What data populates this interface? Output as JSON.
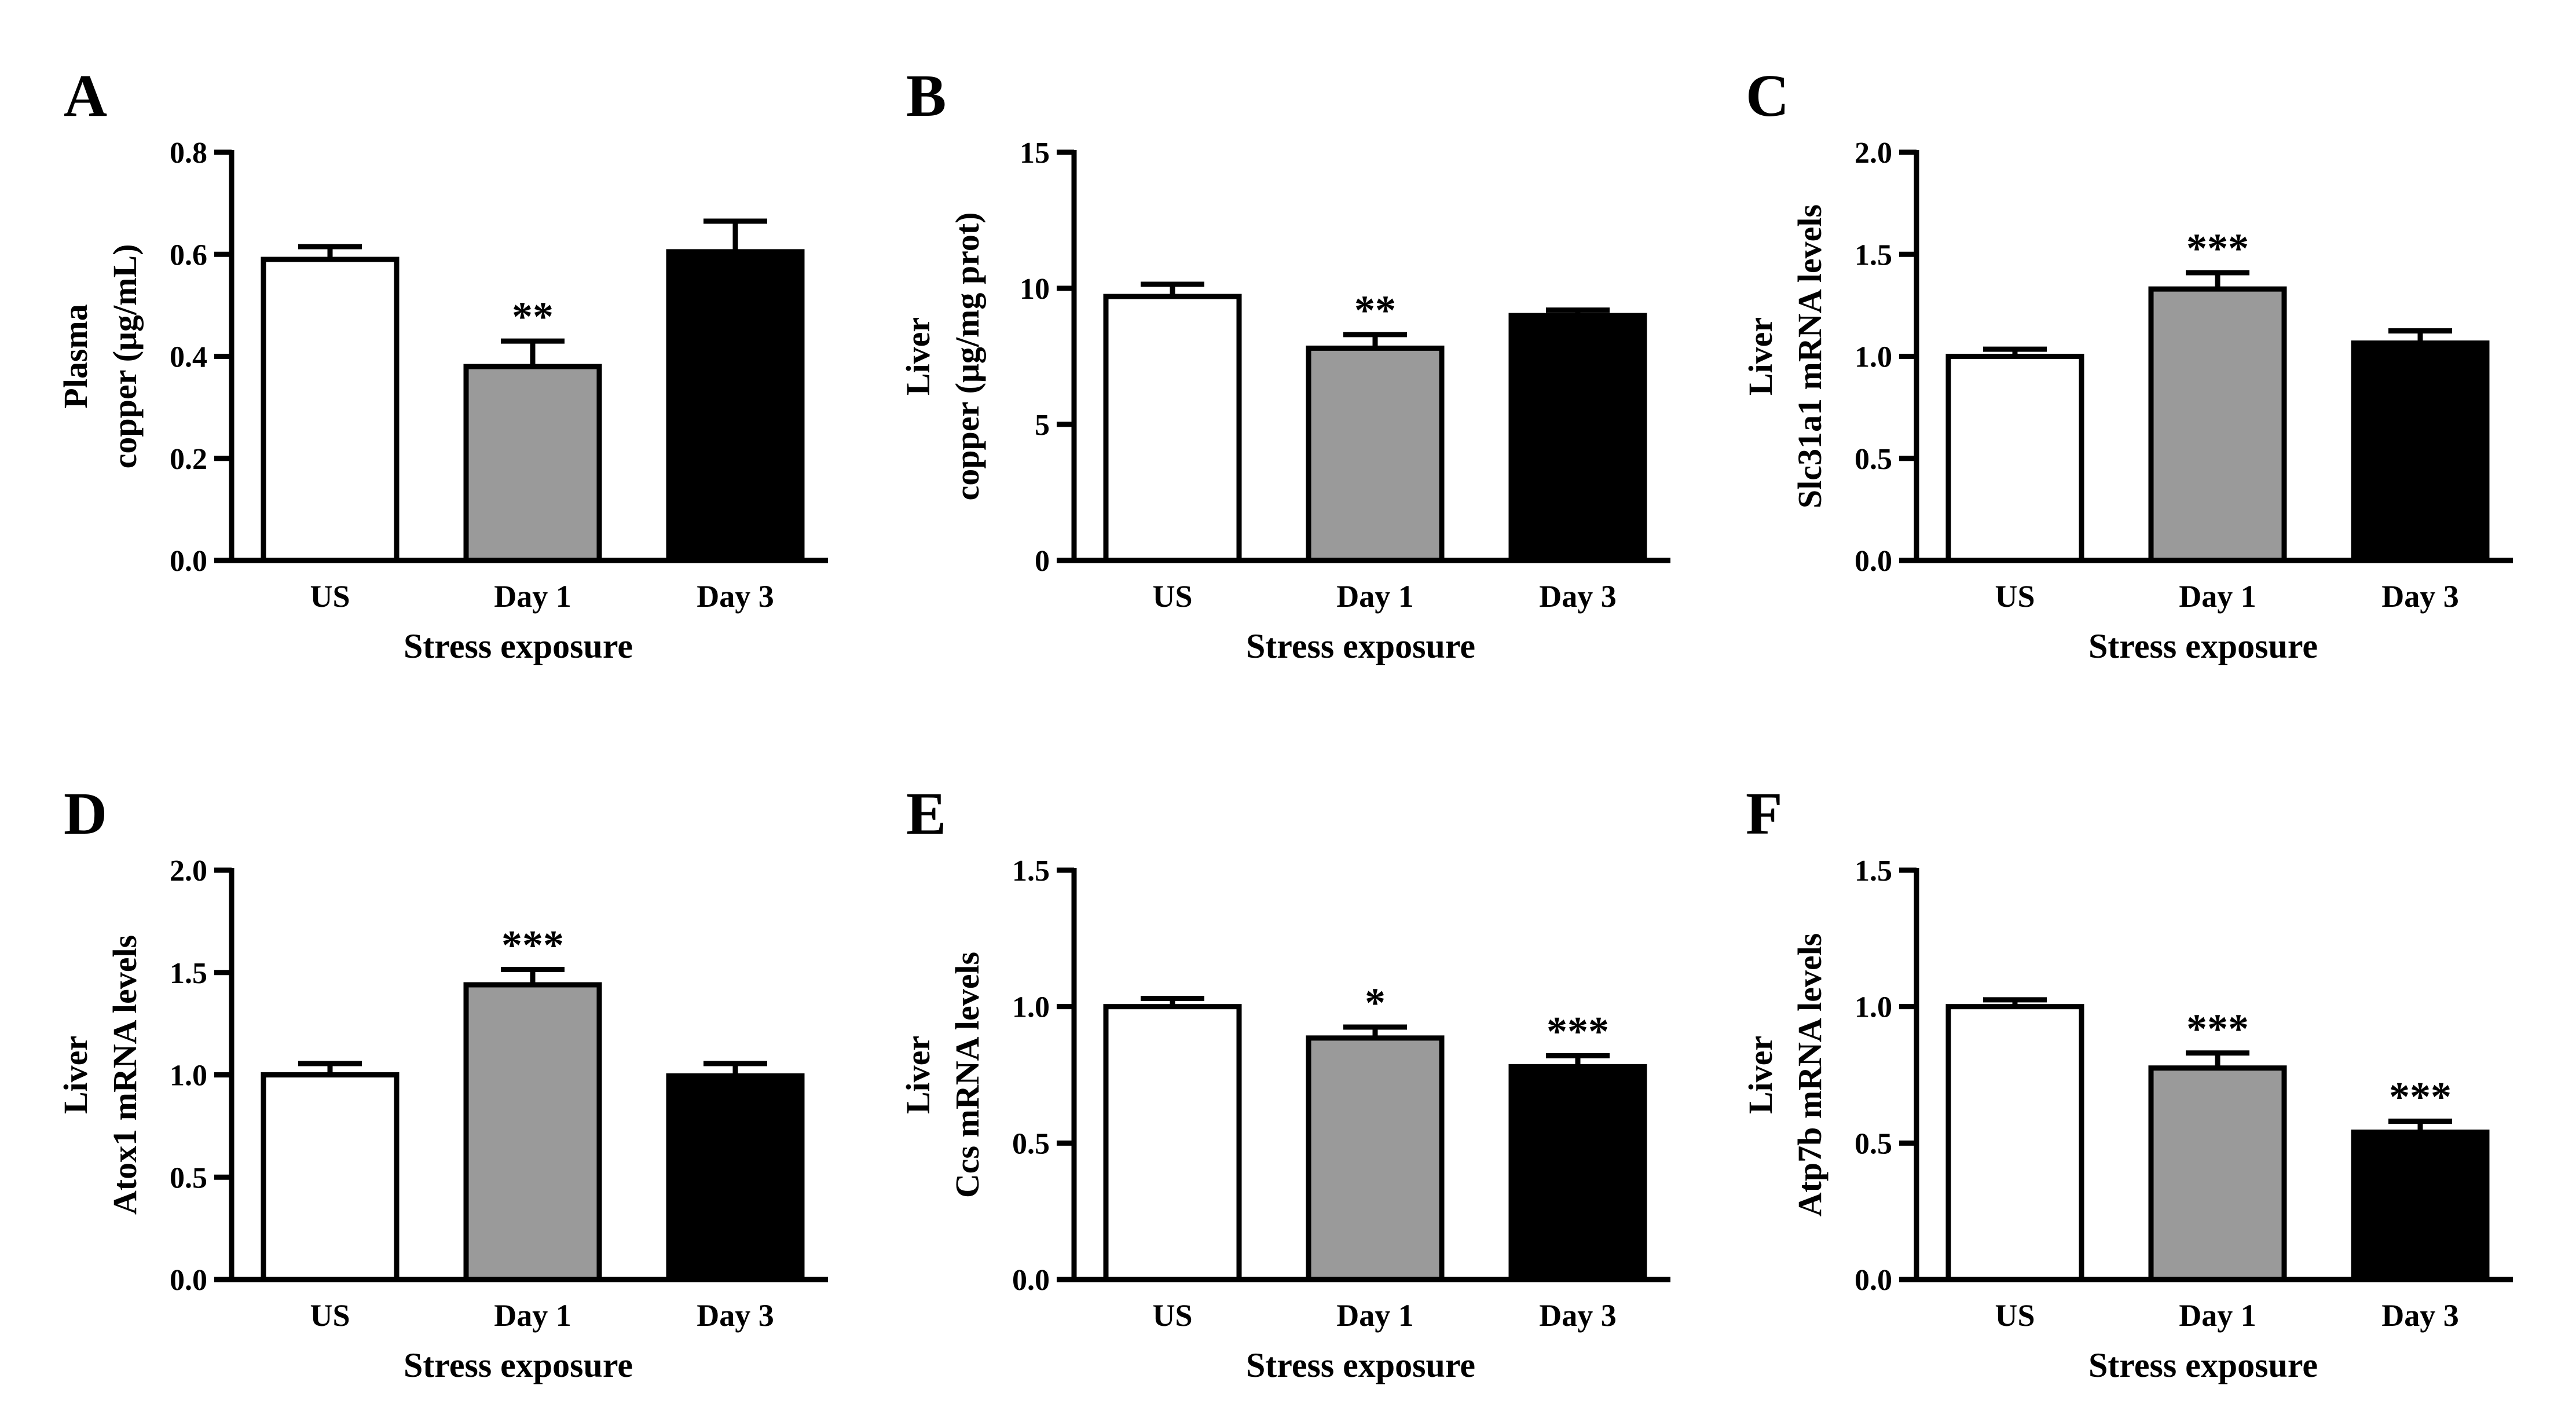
{
  "colors": {
    "us": "#ffffff",
    "day1": "#9a9a9a",
    "day3": "#000000",
    "stroke": "#000000"
  },
  "chart_data": [
    {
      "panel": "A",
      "type": "bar",
      "categories": [
        "US",
        "Day 1",
        "Day 3"
      ],
      "values": [
        0.59,
        0.38,
        0.605
      ],
      "errors": [
        0.025,
        0.05,
        0.06
      ],
      "significance": [
        "",
        "**",
        ""
      ],
      "ylabel_lines": [
        "Plasma",
        "copper (μg/mL)"
      ],
      "xlabel": "Stress exposure",
      "ylim": [
        0,
        0.8
      ],
      "yticks": [
        "0.0",
        "0.2",
        "0.4",
        "0.6",
        "0.8"
      ]
    },
    {
      "panel": "B",
      "type": "bar",
      "categories": [
        "US",
        "Day 1",
        "Day 3"
      ],
      "values": [
        9.7,
        7.8,
        9.0
      ],
      "errors": [
        0.45,
        0.5,
        0.2
      ],
      "significance": [
        "",
        "**",
        ""
      ],
      "ylabel_lines": [
        "Liver",
        "copper (μg/mg prot)"
      ],
      "xlabel": "Stress exposure",
      "ylim": [
        0,
        15
      ],
      "yticks": [
        "0",
        "5",
        "10",
        "15"
      ]
    },
    {
      "panel": "C",
      "type": "bar",
      "categories": [
        "US",
        "Day 1",
        "Day 3"
      ],
      "values": [
        1.0,
        1.33,
        1.065
      ],
      "errors": [
        0.035,
        0.08,
        0.06
      ],
      "significance": [
        "",
        "***",
        ""
      ],
      "ylabel_lines": [
        "Liver",
        "Slc31a1 mRNA levels"
      ],
      "xlabel": "Stress exposure",
      "ylim": [
        0,
        2.0
      ],
      "yticks": [
        "0.0",
        "0.5",
        "1.0",
        "1.5",
        "2.0"
      ]
    },
    {
      "panel": "D",
      "type": "bar",
      "categories": [
        "US",
        "Day 1",
        "Day 3"
      ],
      "values": [
        1.0,
        1.44,
        0.995
      ],
      "errors": [
        0.055,
        0.075,
        0.06
      ],
      "significance": [
        "",
        "***",
        ""
      ],
      "ylabel_lines": [
        "Liver",
        "Atox1 mRNA levels"
      ],
      "xlabel": "Stress exposure",
      "ylim": [
        0,
        2.0
      ],
      "yticks": [
        "0.0",
        "0.5",
        "1.0",
        "1.5",
        "2.0"
      ]
    },
    {
      "panel": "E",
      "type": "bar",
      "categories": [
        "US",
        "Day 1",
        "Day 3"
      ],
      "values": [
        1.0,
        0.885,
        0.78
      ],
      "errors": [
        0.03,
        0.04,
        0.04
      ],
      "significance": [
        "",
        "*",
        "***"
      ],
      "ylabel_lines": [
        "Liver",
        "Ccs mRNA levels"
      ],
      "xlabel": "Stress exposure",
      "ylim": [
        0,
        1.5
      ],
      "yticks": [
        "0.0",
        "0.5",
        "1.0",
        "1.5"
      ]
    },
    {
      "panel": "F",
      "type": "bar",
      "categories": [
        "US",
        "Day 1",
        "Day 3"
      ],
      "values": [
        1.0,
        0.775,
        0.54
      ],
      "errors": [
        0.025,
        0.055,
        0.04
      ],
      "significance": [
        "",
        "***",
        "***"
      ],
      "ylabel_lines": [
        "Liver",
        "Atp7b mRNA levels"
      ],
      "xlabel": "Stress exposure",
      "ylim": [
        0,
        1.5
      ],
      "yticks": [
        "0.0",
        "0.5",
        "1.0",
        "1.5"
      ]
    }
  ]
}
